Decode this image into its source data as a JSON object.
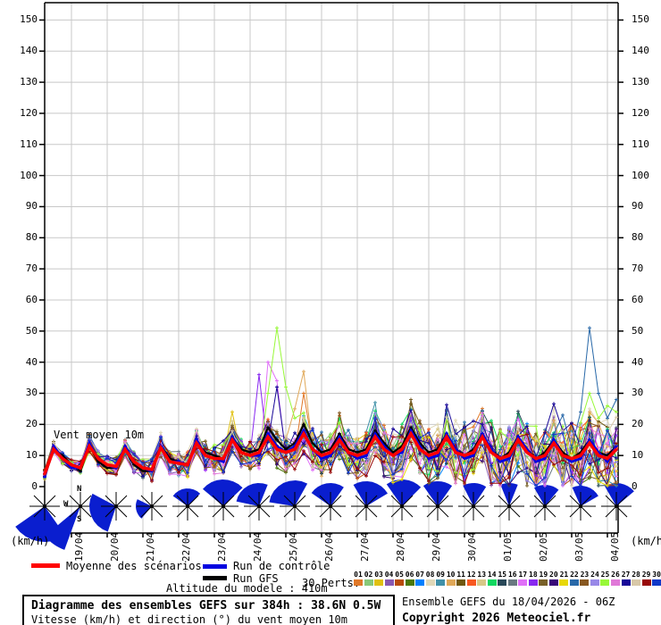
{
  "colors": {
    "background": "#FFFFFF",
    "grid": "#C8C8C8",
    "axis": "#000000",
    "wind": "#0A1ECF"
  },
  "axis_labels": {
    "unit_left": "(km/h)",
    "unit_right": "(km/h)"
  },
  "footer": {
    "altitude": "Altitude du modele : 410m",
    "title": "Diagramme des ensembles GEFS sur 384h : 38.6N 0.5W",
    "subtitle": "Vitesse (km/h) et direction (°) du vent moyen 10m",
    "run_info": "Ensemble GEFS du 18/04/2026 - 06Z",
    "copyright": "Copyright 2026 Meteociel.fr"
  },
  "chart_data": {
    "type": "line",
    "title": "Vent moyen 10m",
    "unit": "(km/h)",
    "x_start": "18/04 06Z",
    "x_step_hours": 6,
    "n_points": 65,
    "x_labels": [
      "19/04",
      "20/04",
      "21/04",
      "22/04",
      "23/04",
      "24/04",
      "25/04",
      "26/04",
      "27/04",
      "28/04",
      "29/04",
      "30/04",
      "01/05",
      "02/05",
      "03/05",
      "04/05"
    ],
    "y_ticks": [
      0,
      10,
      20,
      30,
      40,
      50,
      60,
      70,
      80,
      90,
      100,
      110,
      120,
      130,
      140,
      150
    ],
    "ylim": [
      0,
      155
    ],
    "series_main": {
      "mean": {
        "label": "Moyenne des scénarios",
        "color": "#FF0000",
        "values": [
          4,
          12,
          9,
          7,
          6,
          13,
          9,
          7,
          6.5,
          12,
          8,
          6,
          5.5,
          12.5,
          8,
          7.5,
          7,
          14,
          10,
          9,
          9,
          15,
          11,
          10,
          11,
          16,
          12,
          11,
          12,
          17,
          12,
          10,
          11,
          15,
          11,
          10,
          11,
          16,
          12,
          10,
          12,
          17,
          12,
          10,
          11,
          16,
          11,
          10,
          11,
          16,
          11,
          9,
          10,
          15,
          11,
          9,
          10,
          14,
          10,
          9,
          10,
          14,
          10,
          9,
          12
        ]
      },
      "control": {
        "label": "Run de contrôle",
        "color": "#0000E0",
        "values": [
          3,
          13,
          9,
          6,
          6,
          14,
          9,
          7,
          6,
          13,
          8,
          6,
          5,
          13,
          8,
          8,
          7,
          15,
          10,
          9,
          8,
          16,
          11,
          10,
          10,
          17,
          13,
          11,
          13,
          18,
          12,
          9,
          10,
          16,
          11,
          9,
          10,
          17,
          13,
          10,
          11,
          18,
          13,
          9,
          10,
          17,
          12,
          9,
          10,
          17,
          12,
          8,
          9,
          16,
          12,
          8,
          9,
          15,
          10,
          8,
          9,
          15,
          11,
          8,
          13
        ]
      },
      "gfs": {
        "label": "Run GFS",
        "color": "#000000",
        "values": [
          4,
          12,
          10,
          7,
          5,
          13,
          8,
          6,
          6,
          12,
          7,
          5,
          5,
          13,
          9,
          8,
          7,
          14,
          11,
          10,
          9,
          16,
          12,
          11,
          12,
          19,
          15,
          12,
          14,
          20,
          14,
          11,
          12,
          17,
          12,
          11,
          12,
          18,
          14,
          11,
          13,
          19,
          14,
          11,
          12,
          17,
          12,
          10,
          12,
          17,
          12,
          9,
          11,
          16,
          12,
          9,
          11,
          15,
          11,
          9,
          11,
          15,
          11,
          10,
          13
        ]
      }
    },
    "members": {
      "count": 30,
      "label": "30 Perts.",
      "numbers": [
        "01",
        "02",
        "03",
        "04",
        "05",
        "06",
        "07",
        "08",
        "09",
        "10",
        "11",
        "12",
        "13",
        "14",
        "15",
        "16",
        "17",
        "18",
        "19",
        "20",
        "21",
        "22",
        "23",
        "24",
        "25",
        "26",
        "27",
        "28",
        "29",
        "30"
      ],
      "colors": [
        "#E07828",
        "#88C878",
        "#E0C010",
        "#8858B0",
        "#B84A08",
        "#4A7808",
        "#0080FF",
        "#E0D8B8",
        "#4090A8",
        "#E0A858",
        "#705810",
        "#F85820",
        "#D8C888",
        "#10D860",
        "#284858",
        "#687880",
        "#E070F8",
        "#8828F0",
        "#786028",
        "#380878",
        "#E8D808",
        "#2868A8",
        "#885820",
        "#9888E8",
        "#98F838",
        "#E078D8",
        "#180898",
        "#D8C8A8",
        "#980808",
        "#1038C8"
      ],
      "seed": 20260418,
      "spread_base": 1.6,
      "spread_growth": 0.16,
      "spikes": [
        [
          16,
          25,
          40
        ],
        [
          16,
          26,
          34
        ],
        [
          17,
          24,
          36
        ],
        [
          9,
          28,
          25
        ],
        [
          9,
          29,
          37
        ],
        [
          26,
          26,
          32
        ],
        [
          24,
          25,
          30
        ],
        [
          24,
          26,
          51
        ],
        [
          24,
          27,
          32
        ],
        [
          24,
          28,
          22
        ],
        [
          0,
          29,
          30
        ],
        [
          18,
          41,
          28
        ],
        [
          8,
          37,
          27
        ],
        [
          2,
          21,
          24
        ],
        [
          21,
          60,
          24
        ],
        [
          21,
          61,
          51
        ],
        [
          21,
          62,
          30
        ],
        [
          21,
          63,
          22
        ],
        [
          21,
          64,
          28
        ],
        [
          24,
          61,
          30
        ],
        [
          24,
          62,
          22
        ],
        [
          24,
          63,
          26
        ],
        [
          24,
          64,
          24
        ]
      ]
    },
    "wind": {
      "color": "#0A1ECF",
      "compass": {
        "n": "N",
        "w": "W",
        "s": "S"
      },
      "fans": [
        [
          190,
          45,
          40
        ],
        [
          215,
          15,
          52
        ],
        [
          248,
          50,
          30
        ],
        [
          258,
          38,
          18
        ],
        [
          355,
          50,
          20
        ],
        [
          358,
          48,
          30
        ],
        [
          332,
          50,
          26
        ],
        [
          334,
          55,
          29
        ],
        [
          350,
          45,
          26
        ],
        [
          14,
          45,
          28
        ],
        [
          5,
          40,
          30
        ],
        [
          0,
          35,
          28
        ],
        [
          3,
          30,
          26
        ],
        [
          0,
          22,
          26
        ],
        [
          5,
          35,
          24
        ],
        [
          18,
          42,
          23
        ],
        [
          10,
          40,
          26
        ]
      ]
    }
  }
}
